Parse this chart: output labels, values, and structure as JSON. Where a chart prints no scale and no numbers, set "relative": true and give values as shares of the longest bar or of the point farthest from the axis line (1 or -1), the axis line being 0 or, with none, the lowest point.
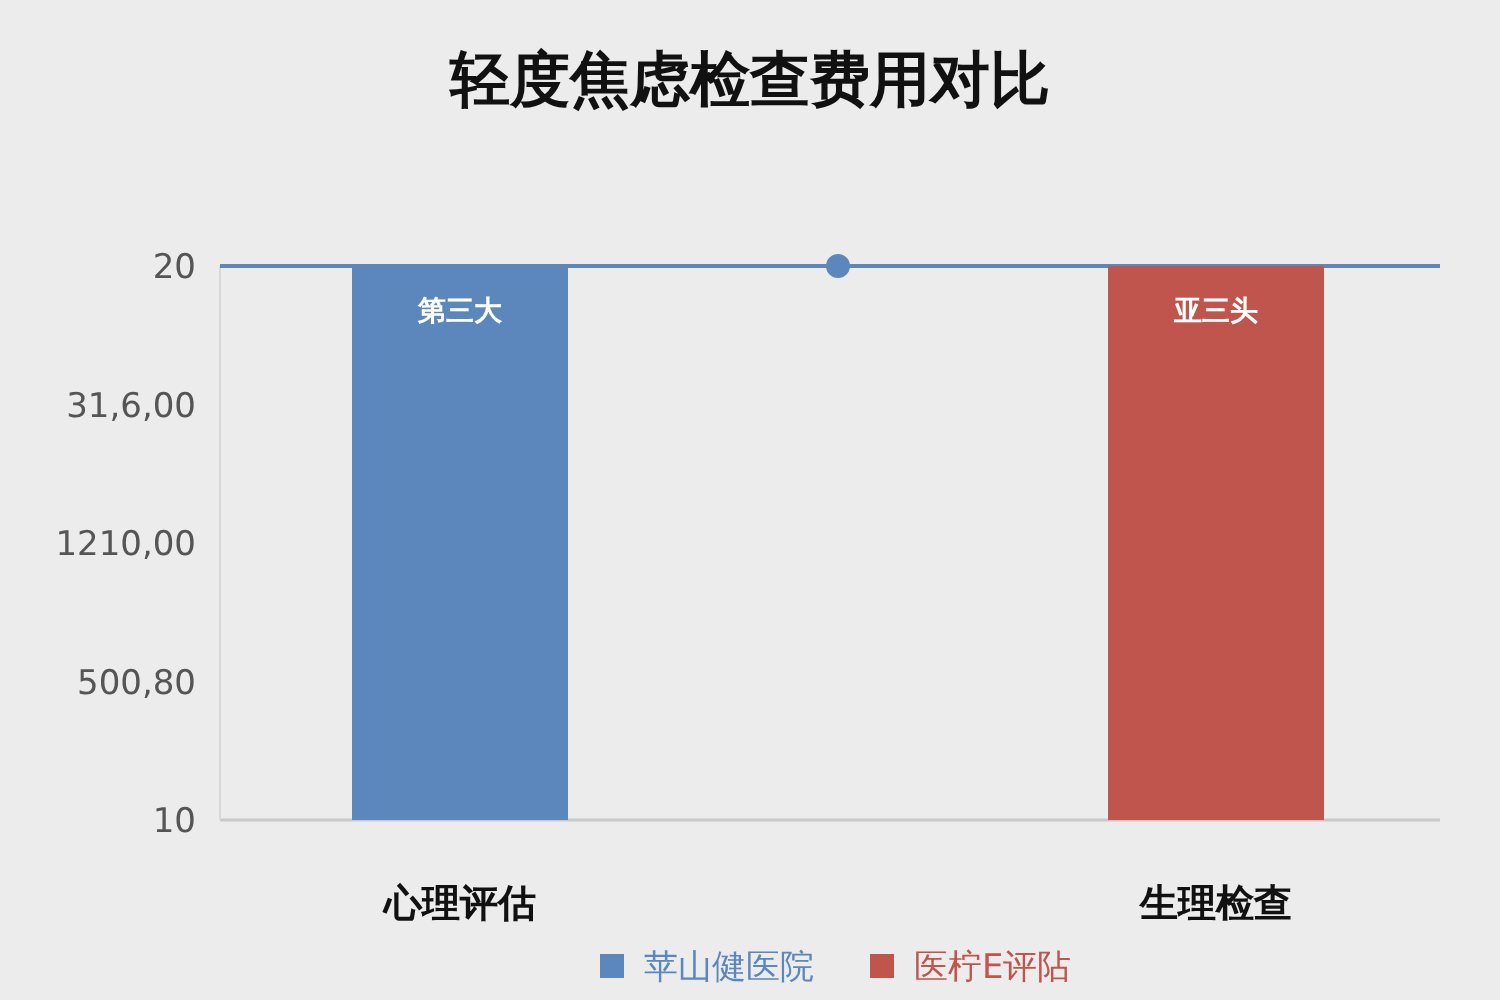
{
  "chart_data": {
    "type": "bar",
    "title": "轻度焦虑检查费用对比",
    "relative": true,
    "categories": [
      "心理评估",
      null,
      "生理检查"
    ],
    "series": [
      {
        "name": "苹山健医院",
        "color": "#5b87bd",
        "values": [
          1,
          null,
          null
        ]
      },
      {
        "name": "医柠E评阽",
        "color": "#c0554d",
        "values": [
          null,
          null,
          1
        ]
      },
      {
        "type": "scatter",
        "color": "#5b87bd",
        "marker": "circle",
        "values": [
          null,
          1,
          null
        ]
      }
    ],
    "ref_lines": [
      {
        "axis": "y",
        "value": 1,
        "color": "#5b87bd"
      }
    ],
    "annotations": [
      "20",
      "31,6,00",
      "1210,00",
      "500,80",
      "10",
      {
        "text": "第三大",
        "x": "心理评估",
        "y": 1
      },
      {
        "text": "亚三头",
        "x": "生理检查",
        "y": 1
      }
    ],
    "legend": "bottom"
  }
}
